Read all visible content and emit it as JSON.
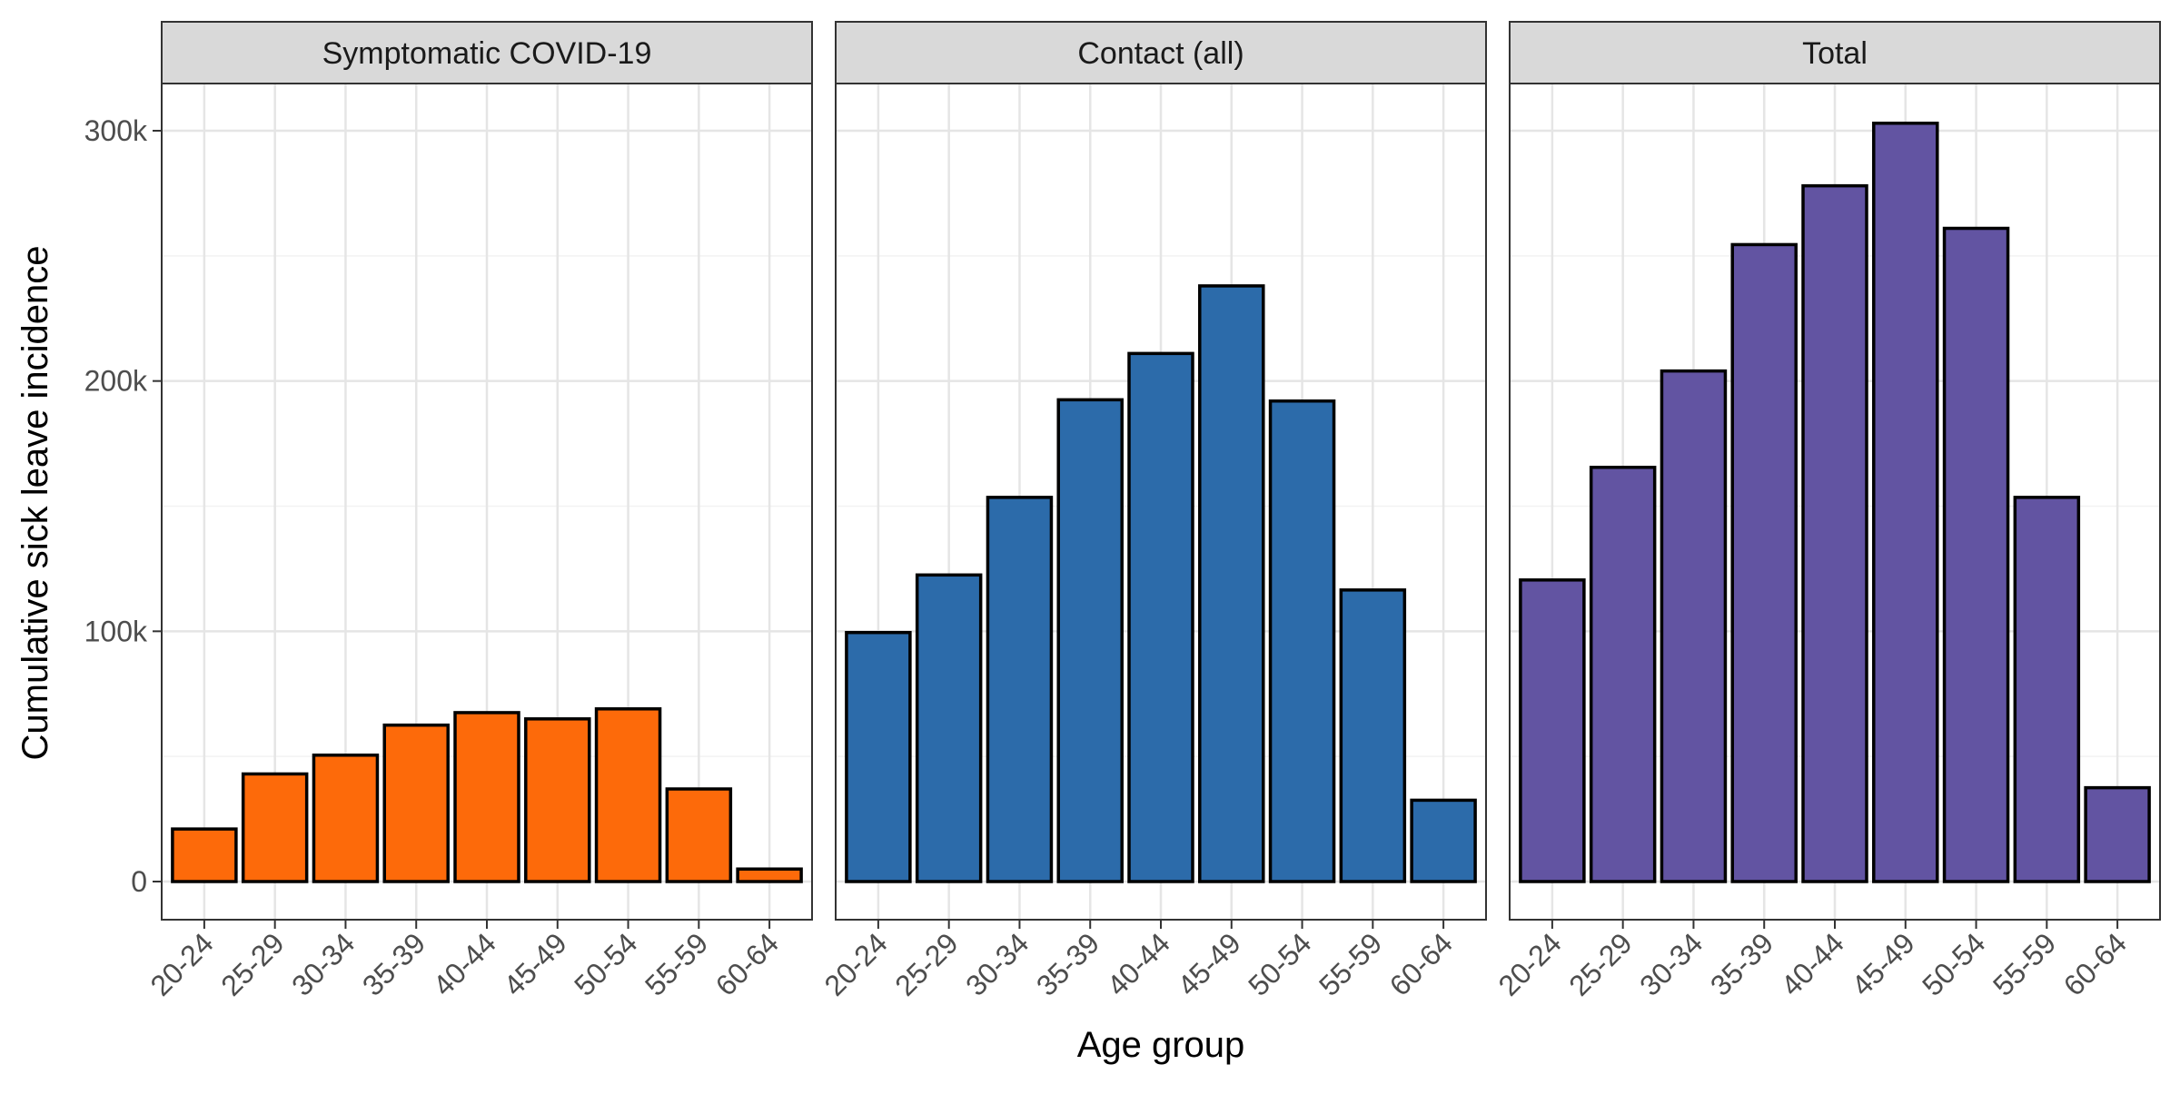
{
  "chart_data": {
    "type": "bar",
    "xlabel": "Age group",
    "ylabel": "Cumulative sick leave incidence",
    "ylim": [
      0,
      330000
    ],
    "yticks": [
      0,
      100000,
      200000,
      300000
    ],
    "ytick_labels": [
      "0",
      "100k",
      "200k",
      "300k"
    ],
    "grid": true,
    "categories": [
      "20-24",
      "25-29",
      "30-34",
      "35-39",
      "40-44",
      "45-49",
      "50-54",
      "55-59",
      "60-64"
    ],
    "panels": [
      {
        "name": "Symptomatic COVID-19",
        "color": "#FD6A0A",
        "values": [
          21000,
          43000,
          50500,
          62500,
          67500,
          65000,
          69000,
          37000,
          5000
        ]
      },
      {
        "name": "Contact (all)",
        "color": "#2C6BAA",
        "values": [
          99500,
          122500,
          153500,
          192500,
          211000,
          238000,
          192000,
          116500,
          32500
        ]
      },
      {
        "name": "Total",
        "color": "#6254A2",
        "values": [
          120500,
          165500,
          204000,
          254500,
          278000,
          303000,
          261000,
          153500,
          37500
        ]
      }
    ]
  }
}
